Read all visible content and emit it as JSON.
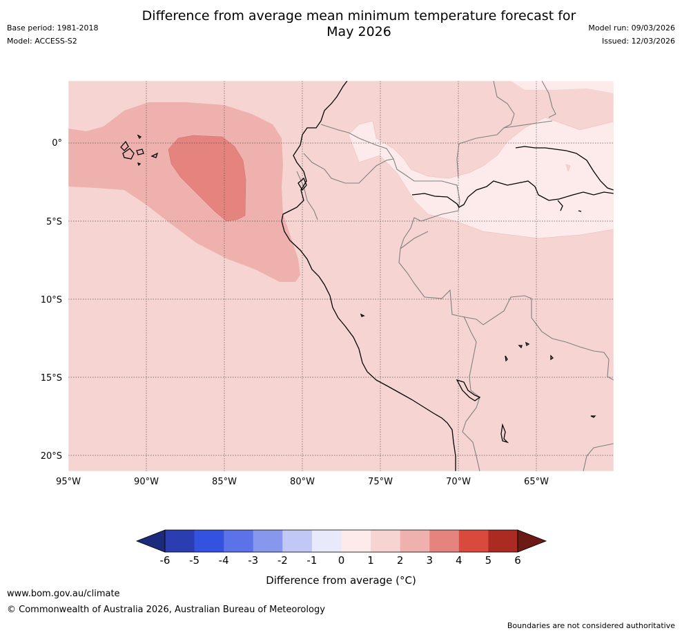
{
  "header": {
    "title_line1": "Difference from average mean minimum temperature forecast for",
    "title_line2": "May 2026",
    "base_period": "Base period: 1981-2018",
    "model": "Model: ACCESS-S2",
    "model_run": "Model run: 09/03/2026",
    "issued": "Issued: 12/03/2026"
  },
  "map": {
    "lat_labels": [
      "0°",
      "5°S",
      "10°S",
      "15°S",
      "20°S"
    ],
    "lon_labels": [
      "95°W",
      "90°W",
      "85°W",
      "80°W",
      "75°W",
      "70°W",
      "65°W"
    ],
    "colors": {
      "background_anomaly": "#f5d4d2",
      "anomaly_low": "#fcebea",
      "anomaly_mid": "#eeb1ae",
      "anomaly_high": "#e5837e",
      "coastline": "#000000",
      "border": "#808080"
    }
  },
  "colorbar": {
    "ticks": [
      "-6",
      "-5",
      "-4",
      "-3",
      "-2",
      "-1",
      "0",
      "1",
      "2",
      "3",
      "4",
      "5",
      "6"
    ],
    "colors": [
      "#1b2a7a",
      "#2a3eb1",
      "#3352e0",
      "#5c72e8",
      "#8798ec",
      "#c1c8f5",
      "#e8eafb",
      "#fcebea",
      "#f5d4d2",
      "#eeb1ae",
      "#e5837e",
      "#d94a3c",
      "#ab2a22",
      "#6b1a15"
    ],
    "label": "Difference from average (°C)"
  },
  "footer": {
    "url": "www.bom.gov.au/climate",
    "copyright": "© Commonwealth of Australia 2026, Australian Bureau of Meteorology",
    "note": "Boundaries are not considered authoritative"
  }
}
